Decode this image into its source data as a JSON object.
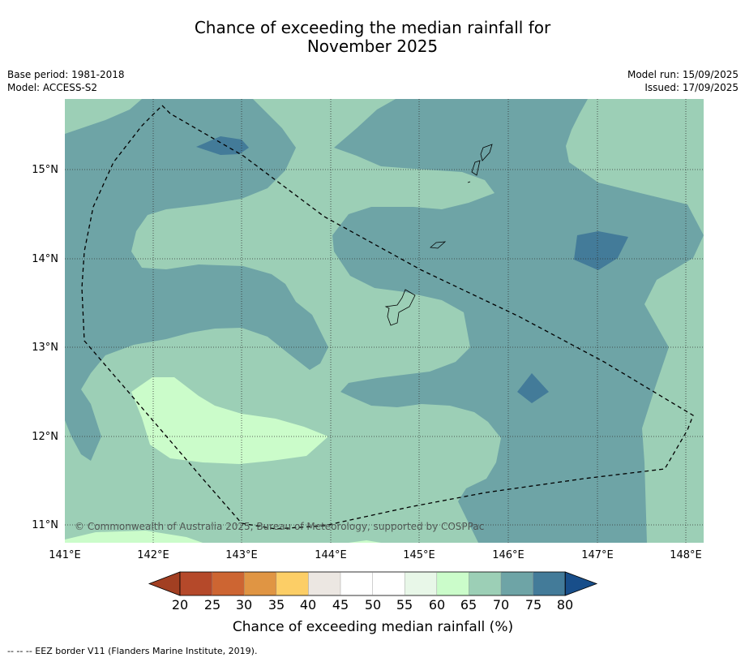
{
  "title_line1": "Chance of exceeding the median rainfall for",
  "title_line2": "November 2025",
  "base_period": "Base period: 1981-2018",
  "model": "Model: ACCESS-S2",
  "model_run": "Model run: 15/09/2025",
  "issued": "Issued: 17/09/2025",
  "x_ticks": [
    "141°E",
    "142°E",
    "143°E",
    "144°E",
    "145°E",
    "146°E",
    "147°E",
    "148°E"
  ],
  "y_ticks": [
    "15°N",
    "14°N",
    "13°N",
    "12°N",
    "11°N"
  ],
  "copyright": "© Commonwealth of Australia 2025, Bureau of Meteorology, supported by COSPPac",
  "colorbar": {
    "labels": [
      "20",
      "25",
      "30",
      "35",
      "40",
      "45",
      "50",
      "55",
      "60",
      "65",
      "70",
      "75",
      "80"
    ],
    "colors": [
      "#a23f22",
      "#b5492a",
      "#cd6532",
      "#e09543",
      "#fcce66",
      "#ece7e2",
      "#ffffff",
      "#ffffff",
      "#e8f7e8",
      "#cbfcca",
      "#9ccfb6",
      "#6ea4a6",
      "#437b99",
      "#184e8a"
    ],
    "title": "Chance of exceeding median rainfall (%)"
  },
  "map_colors": {
    "c65": "#cbfcca",
    "c70": "#9ccfb6",
    "c75": "#6ea4a6",
    "c80": "#437b99"
  },
  "footer": "--  --  -- EEZ border V11 (Flanders Marine Institute, 2019)."
}
